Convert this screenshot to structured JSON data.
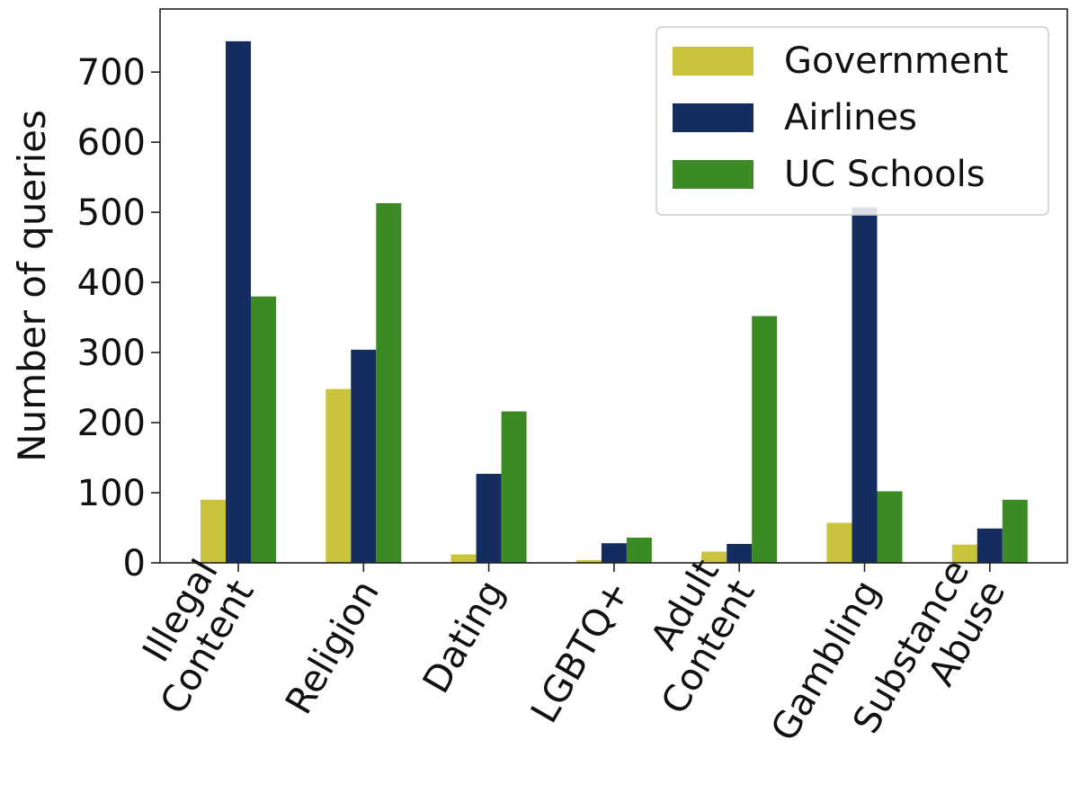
{
  "colors": {
    "government": "#c9c43c",
    "airlines": "#142d5e",
    "uc_schools": "#3b8a24"
  },
  "chart_data": {
    "type": "bar",
    "ylabel": "Number of queries",
    "xlabel": "",
    "ylim": [
      0,
      790
    ],
    "yticks": [
      0,
      100,
      200,
      300,
      400,
      500,
      600,
      700
    ],
    "grid": false,
    "legend_position": "top-right",
    "categories": [
      [
        "Illegal",
        "Content"
      ],
      [
        "Religion"
      ],
      [
        "Dating"
      ],
      [
        "LGBTQ+"
      ],
      [
        "Adult",
        "Content"
      ],
      [
        "Gambling"
      ],
      [
        "Substance",
        "Abuse"
      ]
    ],
    "series": [
      {
        "name": "Government",
        "color": "#c9c43c",
        "values": [
          90,
          248,
          12,
          4,
          16,
          57,
          26
        ]
      },
      {
        "name": "Airlines",
        "color": "#142d5e",
        "values": [
          744,
          304,
          127,
          28,
          27,
          507,
          49
        ]
      },
      {
        "name": "UC Schools",
        "color": "#3b8a24",
        "values": [
          380,
          513,
          216,
          36,
          352,
          102,
          90
        ]
      }
    ]
  }
}
